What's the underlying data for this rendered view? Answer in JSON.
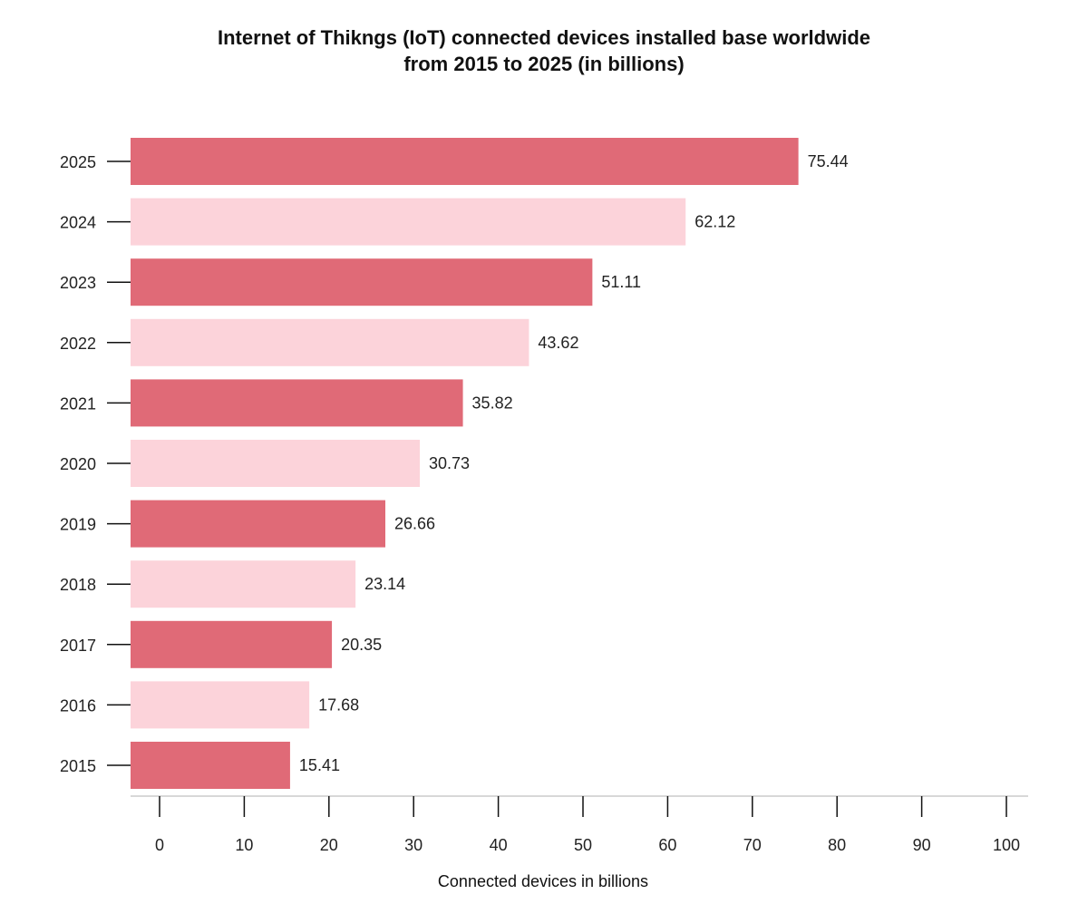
{
  "chart_data": {
    "type": "bar",
    "orientation": "horizontal",
    "title_lines": [
      "Internet of Thikngs (IoT) connected devices installed base worldwide",
      "from 2015 to 2025 (in billions)"
    ],
    "xlabel": "Connected devices in billions",
    "ylabel": "",
    "categories": [
      "2015",
      "2016",
      "2017",
      "2018",
      "2019",
      "2020",
      "2021",
      "2022",
      "2023",
      "2024",
      "2025"
    ],
    "values": [
      15.41,
      17.68,
      20.35,
      23.14,
      26.66,
      30.73,
      35.82,
      43.62,
      51.11,
      62.12,
      75.44
    ],
    "value_labels": [
      "15.41",
      "17.68",
      "20.35",
      "23.14",
      "26.66",
      "30.73",
      "35.82",
      "43.62",
      "51.11",
      "62.12",
      "75.44"
    ],
    "xlim": [
      0,
      100
    ],
    "x_ticks": [
      "0",
      "10",
      "20",
      "30",
      "40",
      "50",
      "60",
      "70",
      "80",
      "90",
      "100"
    ],
    "grid": false,
    "legend": "none",
    "colors": {
      "bar_dark": "#e06a77",
      "bar_light": "#fcd3da",
      "axis": "#cccccc",
      "tick": "#111111"
    }
  }
}
